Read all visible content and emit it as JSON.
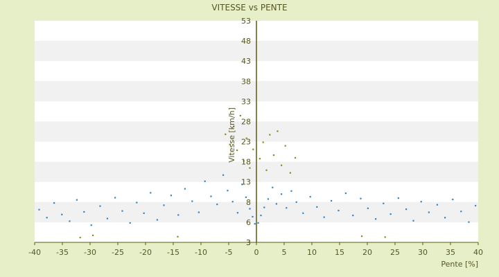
{
  "chart_data": {
    "type": "scatter",
    "title": "VITESSE vs PENTE",
    "xlabel": "Pente [%]",
    "ylabel": "Vitesse [km/h]",
    "xlim": [
      -40,
      40
    ],
    "ylim": [
      3,
      53
    ],
    "x_ticks": [
      -40,
      -35,
      -30,
      -25,
      -20,
      -15,
      -10,
      -5,
      0,
      5,
      10,
      15,
      20,
      25,
      30,
      35,
      40
    ],
    "y_tick_labels": [
      "53",
      "48",
      "43",
      "38",
      "33",
      "28",
      "23",
      "18",
      "13",
      "8",
      "6",
      "3",
      "3"
    ],
    "grid": "horizontal alternating bands",
    "colors": {
      "background": "#e6efc8",
      "plot_band_white": "#ffffff",
      "plot_band_gray": "#f1f1f1",
      "series_blue": "#2f86c9",
      "series_olive": "#8a8a1a",
      "axis_line": "#5a5a14",
      "text": "#555522"
    },
    "series": [
      {
        "color": "#2f86c9",
        "points": [
          [
            -39.2,
            10.4
          ],
          [
            -37.8,
            8.6
          ],
          [
            -36.5,
            11.9
          ],
          [
            -35.1,
            9.3
          ],
          [
            -33.7,
            7.8
          ],
          [
            -32.4,
            12.6
          ],
          [
            -31.1,
            9.9
          ],
          [
            -29.8,
            6.9
          ],
          [
            -28.2,
            11.2
          ],
          [
            -26.9,
            8.4
          ],
          [
            -25.5,
            13.1
          ],
          [
            -24.2,
            10.1
          ],
          [
            -22.8,
            7.4
          ],
          [
            -21.6,
            12.0
          ],
          [
            -20.3,
            9.6
          ],
          [
            -19.1,
            14.2
          ],
          [
            -17.9,
            8.1
          ],
          [
            -16.7,
            11.4
          ],
          [
            -15.4,
            13.6
          ],
          [
            -14.1,
            9.2
          ],
          [
            -12.9,
            15.1
          ],
          [
            -11.6,
            12.3
          ],
          [
            -10.4,
            9.8
          ],
          [
            -9.3,
            16.8
          ],
          [
            -8.2,
            13.4
          ],
          [
            -7.1,
            11.6
          ],
          [
            -6.0,
            18.2
          ],
          [
            -5.2,
            14.7
          ],
          [
            -4.3,
            12.2
          ],
          [
            -3.4,
            9.7
          ],
          [
            -2.6,
            16.1
          ],
          [
            -1.9,
            13.2
          ],
          [
            -1.2,
            10.6
          ],
          [
            -0.7,
            8.8
          ],
          [
            -0.3,
            7.2
          ],
          [
            0.3,
            7.4
          ],
          [
            0.8,
            9.1
          ],
          [
            1.4,
            10.9
          ],
          [
            2.1,
            12.8
          ],
          [
            2.9,
            15.4
          ],
          [
            3.6,
            11.7
          ],
          [
            4.5,
            13.9
          ],
          [
            5.4,
            10.8
          ],
          [
            6.3,
            14.6
          ],
          [
            7.2,
            12.1
          ],
          [
            8.4,
            9.6
          ],
          [
            9.7,
            13.3
          ],
          [
            10.9,
            11.0
          ],
          [
            12.2,
            8.7
          ],
          [
            13.5,
            12.4
          ],
          [
            14.8,
            10.2
          ],
          [
            16.1,
            14.1
          ],
          [
            17.4,
            9.1
          ],
          [
            18.8,
            12.9
          ],
          [
            20.1,
            10.7
          ],
          [
            21.5,
            8.3
          ],
          [
            22.9,
            11.8
          ],
          [
            24.2,
            9.4
          ],
          [
            25.6,
            13.0
          ],
          [
            27.0,
            10.5
          ],
          [
            28.3,
            7.9
          ],
          [
            29.7,
            12.2
          ],
          [
            31.1,
            9.8
          ],
          [
            32.6,
            11.5
          ],
          [
            34.0,
            8.6
          ],
          [
            35.4,
            12.7
          ],
          [
            36.9,
            10.0
          ],
          [
            38.3,
            7.6
          ],
          [
            39.5,
            11.3
          ]
        ]
      },
      {
        "color": "#8a8a1a",
        "points": [
          [
            -5.6,
            27.4
          ],
          [
            -4.8,
            25.1
          ],
          [
            -4.1,
            29.2
          ],
          [
            -3.5,
            23.8
          ],
          [
            -2.9,
            31.6
          ],
          [
            -2.3,
            21.4
          ],
          [
            -1.8,
            26.5
          ],
          [
            -1.2,
            19.8
          ],
          [
            -0.6,
            24.0
          ],
          [
            0.6,
            21.9
          ],
          [
            1.2,
            25.6
          ],
          [
            1.8,
            19.3
          ],
          [
            2.4,
            27.3
          ],
          [
            3.1,
            22.7
          ],
          [
            3.8,
            28.1
          ],
          [
            4.5,
            20.4
          ],
          [
            5.2,
            24.8
          ],
          [
            6.1,
            18.7
          ],
          [
            7.0,
            22.1
          ],
          [
            -31.8,
            4.1
          ],
          [
            -29.5,
            4.6
          ],
          [
            -14.2,
            4.3
          ],
          [
            19.0,
            4.4
          ],
          [
            23.2,
            4.2
          ]
        ]
      }
    ]
  }
}
